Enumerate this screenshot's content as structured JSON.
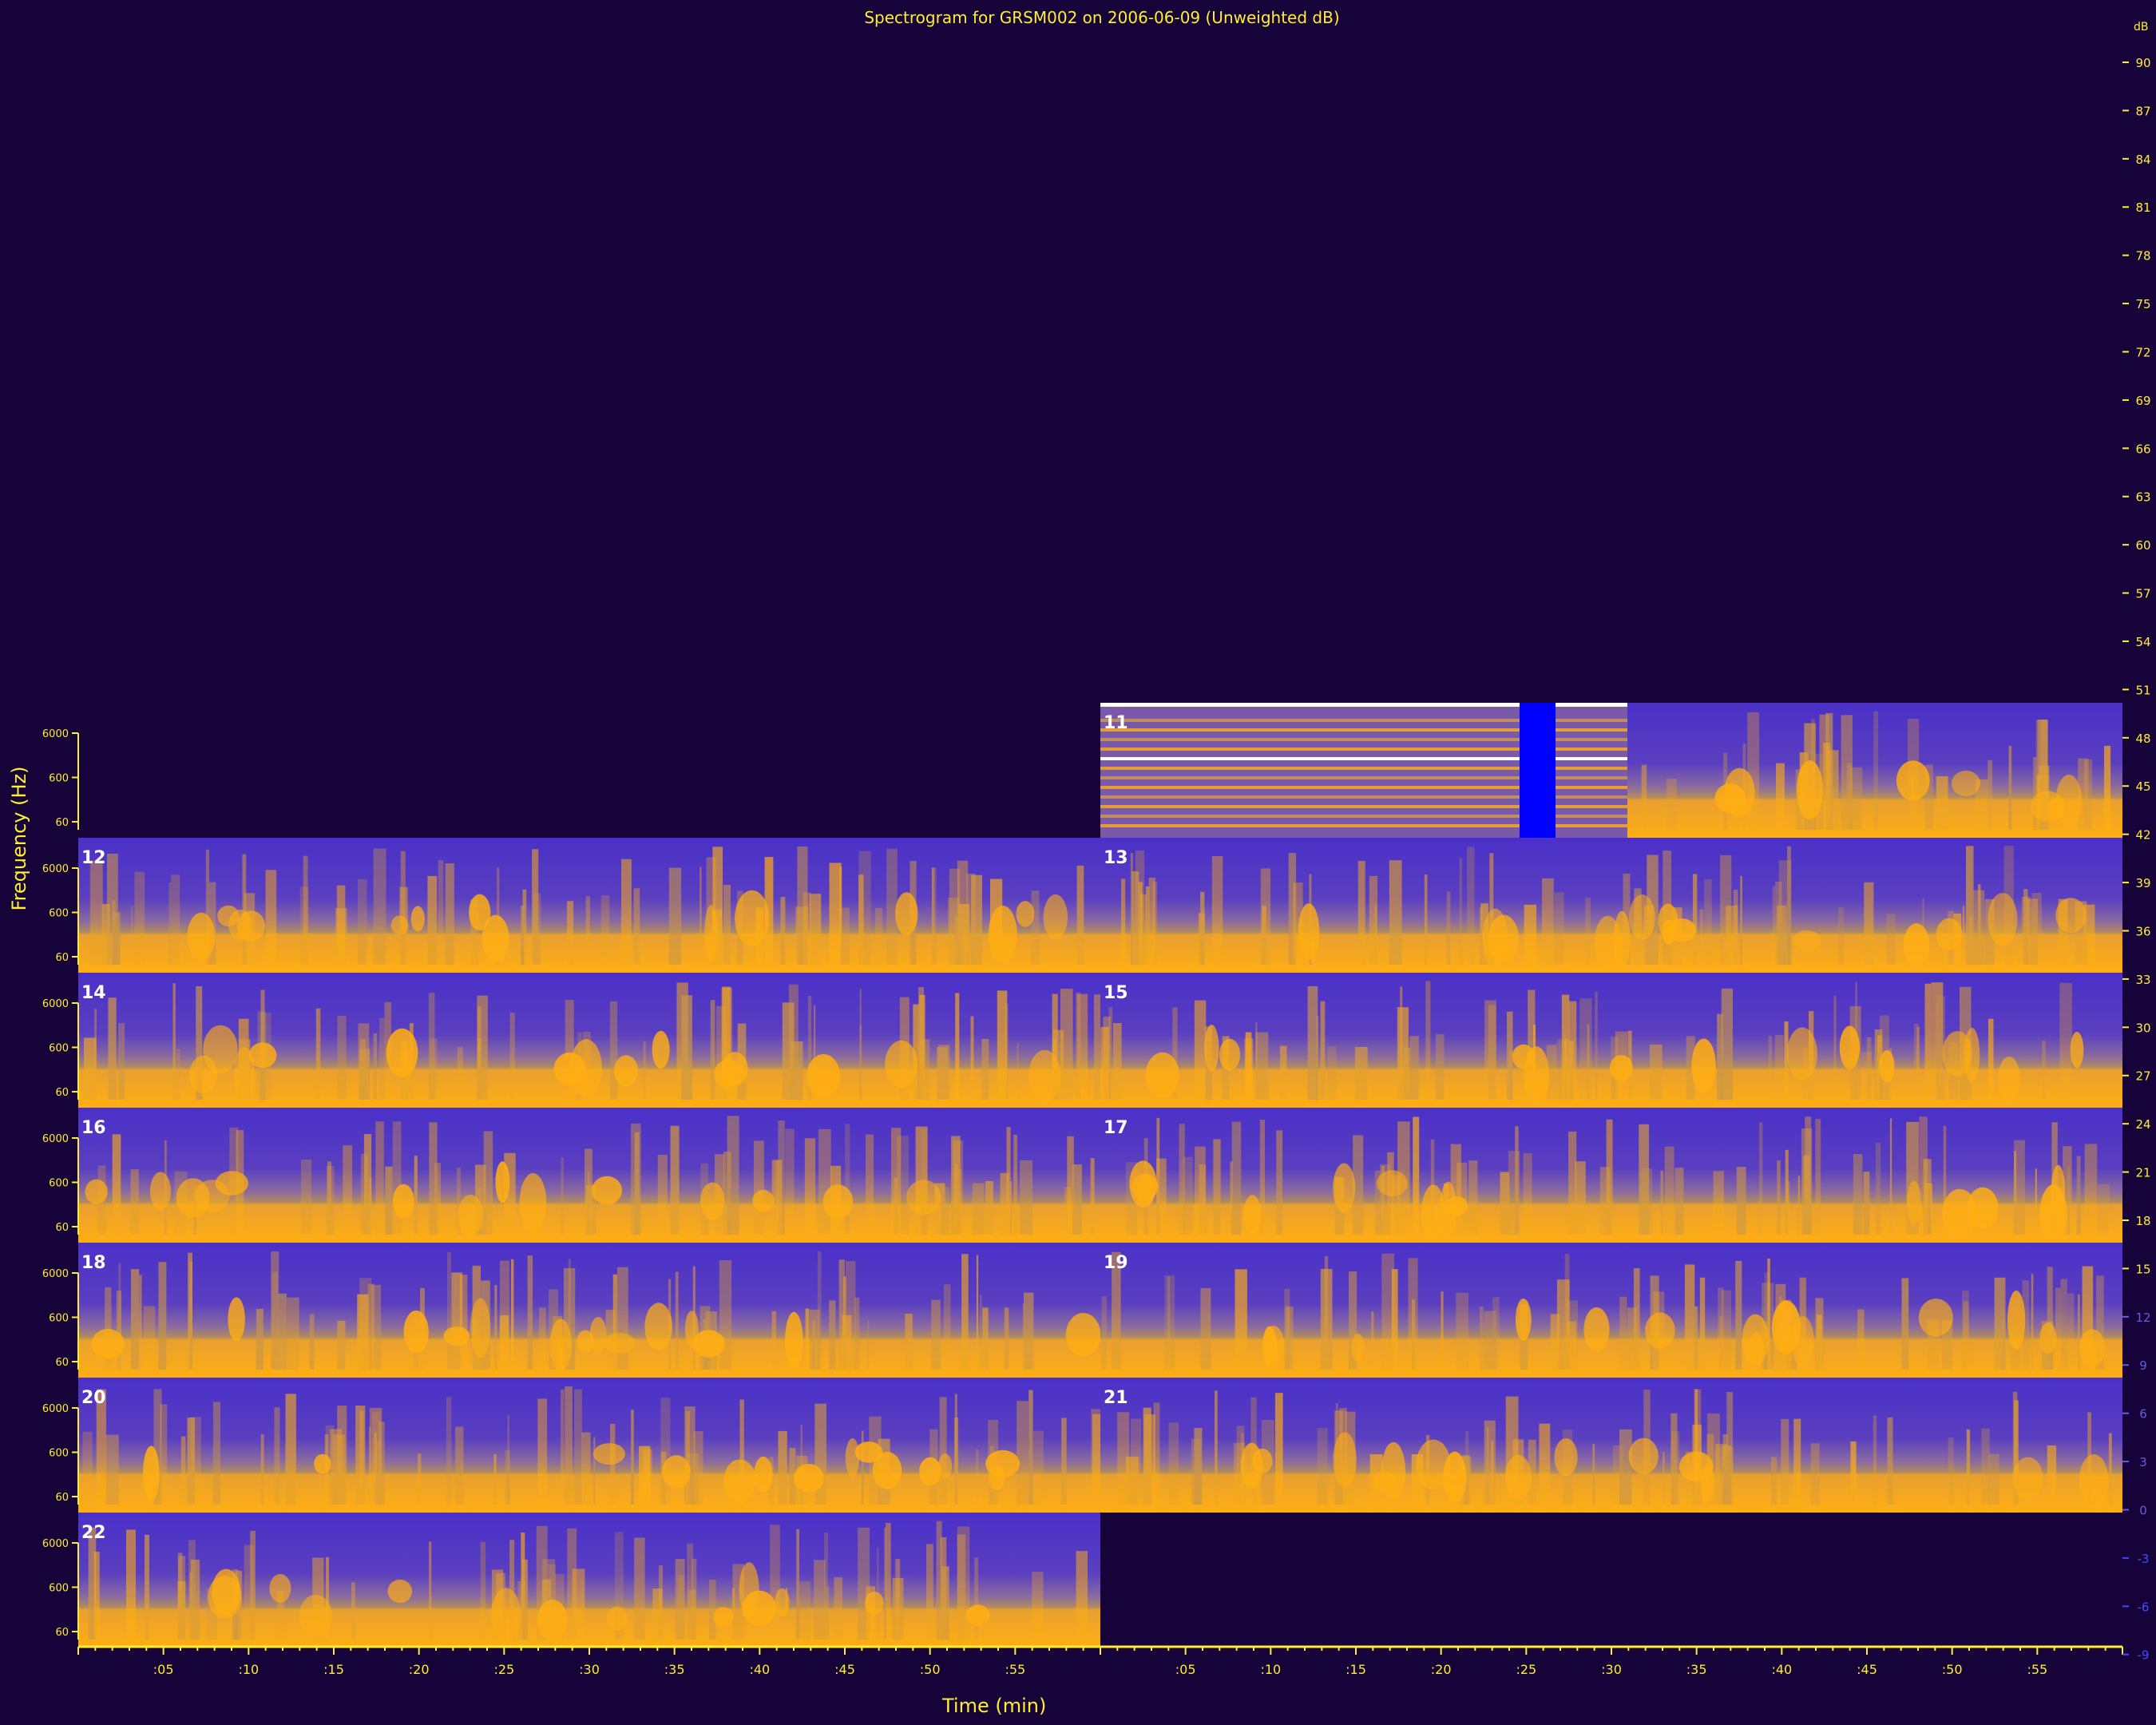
{
  "chart_data": {
    "type": "heatmap",
    "title": "Spectrogram for GRSM002 on 2006-06-09 (Unweighted dB)",
    "xlabel": "Time (min)",
    "ylabel": "Frequency (Hz)",
    "x_ticks": [
      ":05",
      ":10",
      ":15",
      ":20",
      ":25",
      ":30",
      ":35",
      ":40",
      ":45",
      ":50",
      ":55"
    ],
    "y_ticks": [
      "60",
      "600",
      "6000"
    ],
    "colorbar": {
      "unit": "dB",
      "ticks": [
        90,
        87,
        84,
        81,
        78,
        75,
        72,
        69,
        66,
        63,
        60,
        57,
        54,
        51,
        48,
        45,
        42,
        39,
        36,
        33,
        30,
        27,
        24,
        21,
        18,
        15,
        12,
        9,
        6,
        3,
        0,
        -3,
        -6,
        -9
      ]
    },
    "hours": [
      {
        "label": "11",
        "row": 0,
        "col": 1,
        "coverage": [
          0,
          1
        ]
      },
      {
        "label": "12",
        "row": 1,
        "col": 0,
        "coverage": [
          0,
          1
        ]
      },
      {
        "label": "13",
        "row": 1,
        "col": 1,
        "coverage": [
          0,
          1
        ]
      },
      {
        "label": "14",
        "row": 2,
        "col": 0,
        "coverage": [
          0,
          1
        ]
      },
      {
        "label": "15",
        "row": 2,
        "col": 1,
        "coverage": [
          0,
          1
        ]
      },
      {
        "label": "16",
        "row": 3,
        "col": 0,
        "coverage": [
          0,
          1
        ]
      },
      {
        "label": "17",
        "row": 3,
        "col": 1,
        "coverage": [
          0,
          1
        ]
      },
      {
        "label": "18",
        "row": 4,
        "col": 0,
        "coverage": [
          0,
          1
        ]
      },
      {
        "label": "19",
        "row": 4,
        "col": 1,
        "coverage": [
          0,
          1
        ]
      },
      {
        "label": "20",
        "row": 5,
        "col": 0,
        "coverage": [
          0,
          1
        ]
      },
      {
        "label": "21",
        "row": 5,
        "col": 1,
        "coverage": [
          0,
          1
        ]
      },
      {
        "label": "22",
        "row": 6,
        "col": 0,
        "coverage": [
          0,
          1
        ]
      }
    ],
    "colors": {
      "background": "#16033a",
      "low": "#4a30c8",
      "mid": "#b08a60",
      "high": "#ffae12",
      "peak": "#ffffff",
      "text": "#ffee33",
      "gap": "#0000ff"
    }
  }
}
